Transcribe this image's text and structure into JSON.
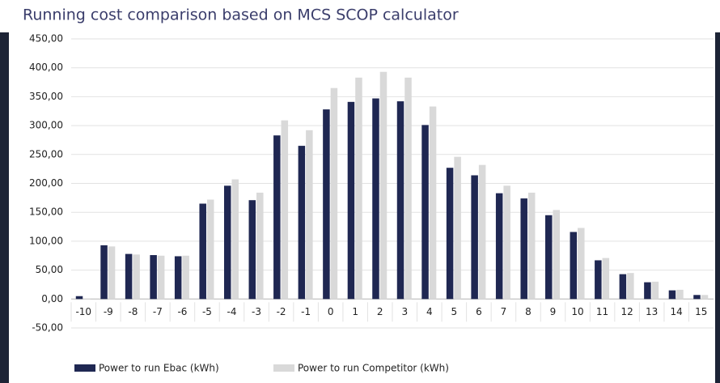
{
  "chart_data": {
    "type": "bar",
    "title": "Running cost comparison based on MCS SCOP calculator",
    "categories": [
      "-10",
      "-9",
      "-8",
      "-7",
      "-6",
      "-5",
      "-4",
      "-3",
      "-2",
      "-1",
      "0",
      "1",
      "2",
      "3",
      "4",
      "5",
      "6",
      "7",
      "8",
      "9",
      "10",
      "11",
      "12",
      "13",
      "14",
      "15"
    ],
    "series": [
      {
        "name": "Power to run Ebac (kWh)",
        "color": "#1f2752",
        "values": [
          5,
          93,
          78,
          76,
          74,
          165,
          196,
          171,
          283,
          265,
          328,
          341,
          347,
          342,
          301,
          227,
          214,
          183,
          174,
          145,
          116,
          67,
          43,
          29,
          15,
          7
        ]
      },
      {
        "name": "Power to run Competitor (kWh)",
        "color": "#d9d9d9",
        "values": [
          1,
          91,
          77,
          75,
          75,
          172,
          207,
          184,
          309,
          292,
          365,
          383,
          393,
          383,
          333,
          246,
          232,
          196,
          184,
          154,
          123,
          71,
          45,
          30,
          16,
          7
        ]
      }
    ],
    "ylim": [
      -50,
      450
    ],
    "yticks": [
      {
        "value": -50,
        "label": "-50,00"
      },
      {
        "value": 0,
        "label": "0,00"
      },
      {
        "value": 50,
        "label": "50,00"
      },
      {
        "value": 100,
        "label": "100,00"
      },
      {
        "value": 150,
        "label": "150,00"
      },
      {
        "value": 200,
        "label": "200,00"
      },
      {
        "value": 250,
        "label": "250,00"
      },
      {
        "value": 300,
        "label": "300,00"
      },
      {
        "value": 350,
        "label": "350,00"
      },
      {
        "value": 400,
        "label": "400,00"
      },
      {
        "value": 450,
        "label": "450,00"
      }
    ],
    "grid": true,
    "legend": "bottom"
  }
}
